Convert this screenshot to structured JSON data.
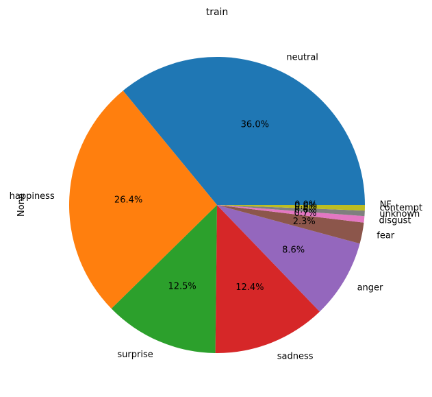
{
  "chart_data": {
    "type": "pie",
    "title": "train",
    "ylabel": "None",
    "start_angle_deg": 0,
    "direction": "counterclockwise",
    "slices": [
      {
        "label": "neutral",
        "value": 36.0,
        "pct_text": "36.0%",
        "color": "#1f77b4"
      },
      {
        "label": "happiness",
        "value": 26.4,
        "pct_text": "26.4%",
        "color": "#ff7f0e"
      },
      {
        "label": "surprise",
        "value": 12.5,
        "pct_text": "12.5%",
        "color": "#2ca02c"
      },
      {
        "label": "sadness",
        "value": 12.4,
        "pct_text": "12.4%",
        "color": "#d62728"
      },
      {
        "label": "anger",
        "value": 8.6,
        "pct_text": "8.6%",
        "color": "#9467bd"
      },
      {
        "label": "fear",
        "value": 2.3,
        "pct_text": "2.3%",
        "color": "#8c564b"
      },
      {
        "label": "disgust",
        "value": 0.7,
        "pct_text": "0.7%",
        "color": "#e377c2"
      },
      {
        "label": "unknown",
        "value": 0.6,
        "pct_text": "0.6%",
        "color": "#7f7f7f"
      },
      {
        "label": "contempt",
        "value": 0.6,
        "pct_text": "0.6%",
        "color": "#bcbd22"
      },
      {
        "label": "NF",
        "value": 0.0,
        "pct_text": "0.0%",
        "color": "#17becf"
      }
    ]
  }
}
